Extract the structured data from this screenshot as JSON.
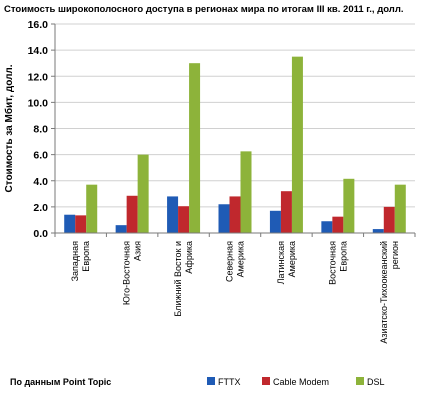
{
  "chart_data": {
    "type": "bar",
    "title": "Стоимость широкополосного доступа в регионах мира по итогам III кв. 2011 г., долл.",
    "ylabel": "Стоимость за Мбит, долл.",
    "xlabel": "",
    "ylim": [
      0,
      16
    ],
    "yticks": [
      "0.0",
      "2.0",
      "4.0",
      "6.0",
      "8.0",
      "10.0",
      "12.0",
      "14.0",
      "16.0"
    ],
    "ytick_values": [
      0,
      2,
      4,
      6,
      8,
      10,
      12,
      14,
      16
    ],
    "grid": true,
    "legend_position": "bottom",
    "categories": [
      "Западная Европа",
      "Юго-Восточная Азия",
      "Ближний Восток и Африка",
      "Северная Америка",
      "Латинская Америка",
      "Восточная Европа",
      "Азиатско-Тихоокеанский регион"
    ],
    "category_lines": [
      [
        "Западная",
        "Европа"
      ],
      [
        "Юго-Восточная",
        "Азия"
      ],
      [
        "Ближний Восток и",
        "Африка"
      ],
      [
        "Северная",
        "Америка"
      ],
      [
        "Латинская",
        "Америка"
      ],
      [
        "Восточная",
        "Европа"
      ],
      [
        "Азиатско-Тихоокеанский",
        "регион"
      ]
    ],
    "series": [
      {
        "name": "FTTX",
        "color": "#1f5bb5",
        "values": [
          1.4,
          0.6,
          2.8,
          2.2,
          1.7,
          0.9,
          0.3
        ]
      },
      {
        "name": "Cable Modem",
        "color": "#c0282d",
        "values": [
          1.35,
          2.85,
          2.05,
          2.8,
          3.2,
          1.25,
          2.0
        ]
      },
      {
        "name": "DSL",
        "color": "#8db33a",
        "values": [
          3.7,
          6.0,
          13.0,
          6.25,
          13.5,
          4.15,
          3.7
        ]
      }
    ],
    "source_note": "По данным Point Topic"
  }
}
